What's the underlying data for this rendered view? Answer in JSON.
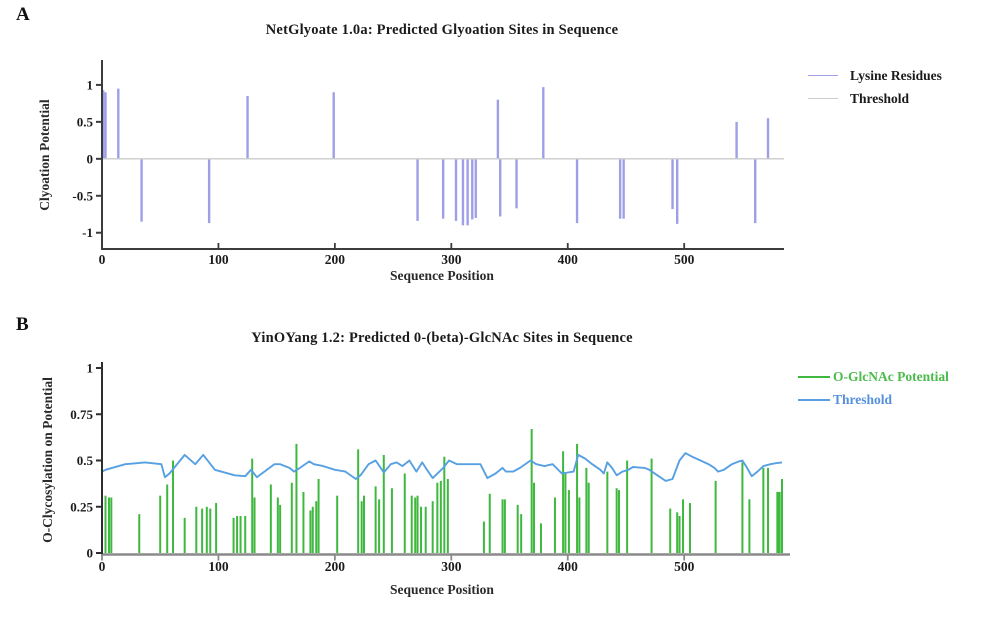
{
  "figure": {
    "panel_a_label": "A",
    "panel_b_label": "B"
  },
  "chart_data": [
    {
      "id": "netglycate",
      "type": "bar",
      "title": "NetGlyoate 1.0a: Predicted Glyoation Sites in Sequence",
      "xlabel": "Sequence Position",
      "ylabel": "Clyoation Potential",
      "xlim": [
        0,
        584
      ],
      "ylim": [
        -1.22,
        1.31
      ],
      "xticks": [
        0,
        100,
        200,
        300,
        400,
        500
      ],
      "yticks": [
        1,
        0.5,
        0,
        -0.5,
        -1
      ],
      "grid": false,
      "legend_position": "right-outside",
      "colors": {
        "bars": "#9f9fe8",
        "threshold": "#cccccc",
        "axis": "#3c3c3c"
      },
      "series": [
        {
          "name": "Lysine Residues",
          "type": "bar",
          "color": "#9f9fe8",
          "points": [
            [
              1,
              0.93
            ],
            [
              3,
              0.9
            ],
            [
              14,
              0.95
            ],
            [
              34,
              -0.85
            ],
            [
              92,
              -0.87
            ],
            [
              125,
              0.85
            ],
            [
              199,
              0.9
            ],
            [
              271,
              -0.84
            ],
            [
              293,
              -0.81
            ],
            [
              304,
              -0.84
            ],
            [
              310,
              -0.9
            ],
            [
              314,
              -0.9
            ],
            [
              318,
              -0.82
            ],
            [
              321,
              -0.8
            ],
            [
              340,
              0.8
            ],
            [
              342,
              -0.78
            ],
            [
              356,
              -0.67
            ],
            [
              379,
              0.97
            ],
            [
              408,
              -0.87
            ],
            [
              445,
              -0.81
            ],
            [
              448,
              -0.81
            ],
            [
              490,
              -0.68
            ],
            [
              494,
              -0.88
            ],
            [
              545,
              0.5
            ],
            [
              561,
              -0.87
            ],
            [
              572,
              0.55
            ]
          ]
        },
        {
          "name": "Threshold",
          "type": "hline",
          "color": "#cccccc",
          "y": 0
        }
      ]
    },
    {
      "id": "yinoyang",
      "type": "bar",
      "title": "YinOYang 1.2: Predicted 0-(beta)-GlcNAc Sites in Sequence",
      "xlabel": "Sequence Position",
      "ylabel": "O-Clycosylation on Potential",
      "xlim": [
        0,
        584
      ],
      "ylim": [
        0,
        1
      ],
      "xticks": [
        0,
        100,
        200,
        300,
        400,
        500
      ],
      "yticks": [
        1,
        0.75,
        0.5,
        0.25,
        0
      ],
      "grid": false,
      "legend_position": "right-outside",
      "colors": {
        "bars": "#3eb83e",
        "threshold": "#57a0e2",
        "axis_x": "#8a8a8a",
        "axis_y": "#2e2e2e"
      },
      "series": [
        {
          "name": "O-GlcNAc Potential",
          "type": "bar",
          "color": "#3eb83e",
          "points": [
            [
              3,
              0.31
            ],
            [
              6,
              0.3
            ],
            [
              8,
              0.3
            ],
            [
              32,
              0.21
            ],
            [
              50,
              0.31
            ],
            [
              56,
              0.37
            ],
            [
              61,
              0.5
            ],
            [
              71,
              0.19
            ],
            [
              81,
              0.25
            ],
            [
              86,
              0.24
            ],
            [
              90,
              0.25
            ],
            [
              93,
              0.24
            ],
            [
              98,
              0.27
            ],
            [
              113,
              0.19
            ],
            [
              116,
              0.2
            ],
            [
              119,
              0.2
            ],
            [
              123,
              0.2
            ],
            [
              129,
              0.51
            ],
            [
              131,
              0.3
            ],
            [
              145,
              0.37
            ],
            [
              151,
              0.3
            ],
            [
              153,
              0.26
            ],
            [
              163,
              0.38
            ],
            [
              167,
              0.59
            ],
            [
              173,
              0.33
            ],
            [
              179,
              0.23
            ],
            [
              181,
              0.25
            ],
            [
              184,
              0.28
            ],
            [
              186,
              0.4
            ],
            [
              202,
              0.31
            ],
            [
              220,
              0.56
            ],
            [
              223,
              0.28
            ],
            [
              225,
              0.31
            ],
            [
              235,
              0.36
            ],
            [
              238,
              0.29
            ],
            [
              242,
              0.53
            ],
            [
              249,
              0.35
            ],
            [
              260,
              0.43
            ],
            [
              266,
              0.31
            ],
            [
              269,
              0.3
            ],
            [
              271,
              0.31
            ],
            [
              274,
              0.25
            ],
            [
              278,
              0.25
            ],
            [
              284,
              0.28
            ],
            [
              288,
              0.38
            ],
            [
              291,
              0.39
            ],
            [
              294,
              0.52
            ],
            [
              297,
              0.4
            ],
            [
              328,
              0.17
            ],
            [
              333,
              0.32
            ],
            [
              344,
              0.29
            ],
            [
              346,
              0.29
            ],
            [
              357,
              0.26
            ],
            [
              360,
              0.21
            ],
            [
              369,
              0.67
            ],
            [
              371,
              0.38
            ],
            [
              377,
              0.16
            ],
            [
              389,
              0.3
            ],
            [
              396,
              0.55
            ],
            [
              398,
              0.43
            ],
            [
              401,
              0.34
            ],
            [
              408,
              0.59
            ],
            [
              410,
              0.3
            ],
            [
              416,
              0.46
            ],
            [
              418,
              0.38
            ],
            [
              434,
              0.44
            ],
            [
              442,
              0.35
            ],
            [
              444,
              0.34
            ],
            [
              451,
              0.5
            ],
            [
              472,
              0.51
            ],
            [
              488,
              0.24
            ],
            [
              494,
              0.22
            ],
            [
              496,
              0.2
            ],
            [
              499,
              0.29
            ],
            [
              505,
              0.27
            ],
            [
              527,
              0.39
            ],
            [
              550,
              0.49
            ],
            [
              556,
              0.29
            ],
            [
              568,
              0.46
            ],
            [
              572,
              0.46
            ],
            [
              580,
              0.33
            ],
            [
              581,
              0.33
            ],
            [
              582,
              0.33
            ],
            [
              584,
              0.4
            ]
          ]
        },
        {
          "name": "Threshold",
          "type": "line",
          "color": "#57a0e2",
          "points": [
            [
              0,
              0.44
            ],
            [
              3,
              0.45
            ],
            [
              20,
              0.48
            ],
            [
              37,
              0.49
            ],
            [
              51,
              0.48
            ],
            [
              54,
              0.41
            ],
            [
              58,
              0.43
            ],
            [
              71,
              0.53
            ],
            [
              80,
              0.48
            ],
            [
              87,
              0.53
            ],
            [
              97,
              0.45
            ],
            [
              114,
              0.42
            ],
            [
              123,
              0.415
            ],
            [
              128,
              0.45
            ],
            [
              133,
              0.41
            ],
            [
              148,
              0.48
            ],
            [
              153,
              0.48
            ],
            [
              161,
              0.46
            ],
            [
              165,
              0.44
            ],
            [
              170,
              0.46
            ],
            [
              178,
              0.495
            ],
            [
              182,
              0.48
            ],
            [
              190,
              0.47
            ],
            [
              200,
              0.45
            ],
            [
              209,
              0.44
            ],
            [
              218,
              0.4
            ],
            [
              222,
              0.42
            ],
            [
              229,
              0.48
            ],
            [
              235,
              0.5
            ],
            [
              242,
              0.435
            ],
            [
              248,
              0.48
            ],
            [
              253,
              0.49
            ],
            [
              258,
              0.47
            ],
            [
              264,
              0.5
            ],
            [
              270,
              0.44
            ],
            [
              275,
              0.49
            ],
            [
              278,
              0.46
            ],
            [
              284,
              0.405
            ],
            [
              293,
              0.46
            ],
            [
              298,
              0.5
            ],
            [
              305,
              0.48
            ],
            [
              325,
              0.48
            ],
            [
              331,
              0.405
            ],
            [
              338,
              0.43
            ],
            [
              344,
              0.46
            ],
            [
              347,
              0.44
            ],
            [
              353,
              0.44
            ],
            [
              359,
              0.46
            ],
            [
              368,
              0.5
            ],
            [
              373,
              0.48
            ],
            [
              380,
              0.47
            ],
            [
              387,
              0.48
            ],
            [
              395,
              0.43
            ],
            [
              400,
              0.435
            ],
            [
              405,
              0.44
            ],
            [
              409,
              0.53
            ],
            [
              415,
              0.51
            ],
            [
              421,
              0.48
            ],
            [
              428,
              0.45
            ],
            [
              431,
              0.43
            ],
            [
              434,
              0.49
            ],
            [
              438,
              0.46
            ],
            [
              442,
              0.42
            ],
            [
              447,
              0.44
            ],
            [
              452,
              0.45
            ],
            [
              456,
              0.465
            ],
            [
              466,
              0.46
            ],
            [
              470,
              0.45
            ],
            [
              477,
              0.42
            ],
            [
              484,
              0.39
            ],
            [
              490,
              0.4
            ],
            [
              496,
              0.5
            ],
            [
              501,
              0.54
            ],
            [
              507,
              0.52
            ],
            [
              514,
              0.5
            ],
            [
              521,
              0.48
            ],
            [
              526,
              0.46
            ],
            [
              529,
              0.44
            ],
            [
              534,
              0.45
            ],
            [
              541,
              0.48
            ],
            [
              547,
              0.495
            ],
            [
              550,
              0.5
            ],
            [
              554,
              0.46
            ],
            [
              558,
              0.415
            ],
            [
              563,
              0.44
            ],
            [
              568,
              0.47
            ],
            [
              574,
              0.48
            ],
            [
              578,
              0.485
            ],
            [
              584,
              0.49
            ]
          ]
        }
      ]
    }
  ]
}
